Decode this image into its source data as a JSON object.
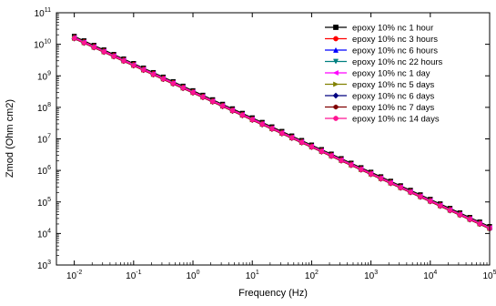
{
  "chart_data": {
    "type": "line",
    "title": "",
    "xlabel": "Frequency (Hz)",
    "ylabel": "Zmod (Ohm cm2)",
    "x_scale": "log",
    "y_scale": "log",
    "xlim": [
      0.005,
      100000
    ],
    "ylim": [
      1000,
      100000000000
    ],
    "x_ticks": [
      {
        "value": 0.01,
        "base": "10",
        "exp": "-2"
      },
      {
        "value": 0.1,
        "base": "10",
        "exp": "-1"
      },
      {
        "value": 1,
        "base": "10",
        "exp": "0"
      },
      {
        "value": 10,
        "base": "10",
        "exp": "1"
      },
      {
        "value": 100,
        "base": "10",
        "exp": "2"
      },
      {
        "value": 1000,
        "base": "10",
        "exp": "3"
      },
      {
        "value": 10000,
        "base": "10",
        "exp": "4"
      },
      {
        "value": 100000,
        "base": "10",
        "exp": "5"
      }
    ],
    "y_ticks": [
      {
        "value": 1000,
        "base": "10",
        "exp": "3"
      },
      {
        "value": 10000,
        "base": "10",
        "exp": "4"
      },
      {
        "value": 100000,
        "base": "10",
        "exp": "5"
      },
      {
        "value": 1000000,
        "base": "10",
        "exp": "6"
      },
      {
        "value": 10000000,
        "base": "10",
        "exp": "7"
      },
      {
        "value": 100000000,
        "base": "10",
        "exp": "8"
      },
      {
        "value": 1000000000,
        "base": "10",
        "exp": "9"
      },
      {
        "value": 10000000000,
        "base": "10",
        "exp": "10"
      },
      {
        "value": 100000000000,
        "base": "10",
        "exp": "11"
      }
    ],
    "legend_position": "top-right",
    "grid": false,
    "x": [
      0.01,
      0.0146,
      0.0215,
      0.0316,
      0.0464,
      0.0681,
      0.1,
      0.147,
      0.215,
      0.316,
      0.464,
      0.681,
      1,
      1.47,
      2.15,
      3.16,
      4.64,
      6.81,
      10,
      14.7,
      21.5,
      31.6,
      46.4,
      68.1,
      100,
      147,
      215,
      316,
      464,
      681,
      1000,
      1470,
      2150,
      3160,
      4640,
      6810,
      10000,
      14700,
      21500,
      31600,
      46400,
      68100,
      100000
    ],
    "series": [
      {
        "name": "epoxy 10% nc 1 hour",
        "color": "#000000",
        "marker": "square",
        "y_offset": 1.12
      },
      {
        "name": "epoxy 10% nc 3 hours",
        "color": "#ff0000",
        "marker": "circle",
        "y_offset": 1.04
      },
      {
        "name": "epoxy 10% nc 6 hours",
        "color": "#0000ff",
        "marker": "triangle-up",
        "y_offset": 1.0
      },
      {
        "name": "epoxy 10% nc 22 hours",
        "color": "#008080",
        "marker": "triangle-down",
        "y_offset": 0.98
      },
      {
        "name": "epoxy 10% nc 1 day",
        "color": "#ff00ff",
        "marker": "triangle-left",
        "y_offset": 1.02
      },
      {
        "name": "epoxy 10% nc 5 days",
        "color": "#808000",
        "marker": "triangle-right",
        "y_offset": 0.96
      },
      {
        "name": "epoxy 10% nc 6 days",
        "color": "#000080",
        "marker": "diamond",
        "y_offset": 0.95
      },
      {
        "name": "epoxy 10% nc 7 days",
        "color": "#800000",
        "marker": "hexagon",
        "y_offset": 0.93
      },
      {
        "name": "epoxy 10% nc 14 days",
        "color": "#ff1493",
        "marker": "circle",
        "y_offset": 0.97
      }
    ],
    "base_curve": {
      "y_at_xmin": 16000000000,
      "slope": -0.8615
    }
  }
}
